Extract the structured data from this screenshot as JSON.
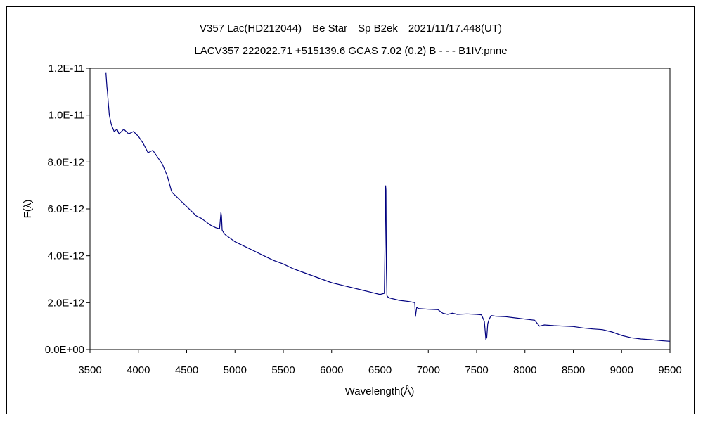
{
  "chart_data": {
    "type": "line",
    "title": "V357 Lac(HD212044)　Be Star　Sp B2ek　2021/11/17.448(UT)",
    "subtitle": "LACV357 222022.71 +515139.6 GCAS 7.02 (0.2) B - - - B1IV:pnne",
    "xlabel": "Wavelength(Å)",
    "ylabel": "F(λ)",
    "xlim": [
      3500,
      9500
    ],
    "ylim": [
      0,
      1.2e-11
    ],
    "grid": false,
    "line_color": "#00007f",
    "x_ticks": [
      3500,
      4000,
      4500,
      5000,
      5500,
      6000,
      6500,
      7000,
      7500,
      8000,
      8500,
      9000,
      9500
    ],
    "x_tick_labels": [
      "3500",
      "4000",
      "4500",
      "5000",
      "5500",
      "6000",
      "6500",
      "7000",
      "7500",
      "8000",
      "8500",
      "9000",
      "9500"
    ],
    "y_ticks": [
      0,
      2e-12,
      4e-12,
      6e-12,
      8e-12,
      1e-11,
      1.2e-11
    ],
    "y_tick_labels": [
      "0.0E+00",
      "2.0E-12",
      "4.0E-12",
      "6.0E-12",
      "8.0E-12",
      "1.0E-11",
      "1.2E-11"
    ],
    "series": [
      {
        "x": [
          3665,
          3670,
          3675,
          3680,
          3690,
          3700,
          3720,
          3750,
          3780,
          3800,
          3850,
          3900,
          3950,
          4000,
          4050,
          4100,
          4150,
          4200,
          4250,
          4300,
          4340,
          4350,
          4400,
          4450,
          4500,
          4550,
          4600,
          4650,
          4700,
          4750,
          4800,
          4840,
          4855,
          4861,
          4867,
          4880,
          4900,
          4950,
          5000,
          5100,
          5200,
          5300,
          5400,
          5500,
          5600,
          5700,
          5800,
          5900,
          6000,
          6100,
          6200,
          6300,
          6400,
          6500,
          6545,
          6552,
          6558,
          6562,
          6566,
          6572,
          6580,
          6600,
          6700,
          6800,
          6860,
          6867,
          6873,
          6880,
          6900,
          7000,
          7100,
          7150,
          7200,
          7250,
          7300,
          7400,
          7500,
          7550,
          7580,
          7595,
          7605,
          7615,
          7630,
          7650,
          7700,
          7800,
          7900,
          8000,
          8100,
          8150,
          8200,
          8300,
          8400,
          8500,
          8600,
          8700,
          8800,
          8900,
          9000,
          9100,
          9200,
          9300,
          9400,
          9500
        ],
        "y": [
          1.18e-11,
          1.15e-11,
          1.12e-11,
          1.1e-11,
          1.05e-11,
          1e-11,
          9.6e-12,
          9.3e-12,
          9.4e-12,
          9.2e-12,
          9.4e-12,
          9.2e-12,
          9.3e-12,
          9.1e-12,
          8.8e-12,
          8.4e-12,
          8.5e-12,
          8.2e-12,
          7.9e-12,
          7.4e-12,
          6.8e-12,
          6.7e-12,
          6.5e-12,
          6.3e-12,
          6.1e-12,
          5.9e-12,
          5.7e-12,
          5.6e-12,
          5.45e-12,
          5.3e-12,
          5.2e-12,
          5.15e-12,
          5.85e-12,
          5.7e-12,
          5.1e-12,
          5e-12,
          4.9e-12,
          4.75e-12,
          4.6e-12,
          4.4e-12,
          4.2e-12,
          4e-12,
          3.8e-12,
          3.65e-12,
          3.45e-12,
          3.3e-12,
          3.15e-12,
          3e-12,
          2.85e-12,
          2.75e-12,
          2.65e-12,
          2.55e-12,
          2.45e-12,
          2.35e-12,
          2.4e-12,
          4.5e-12,
          7e-12,
          6.8e-12,
          3.5e-12,
          2.3e-12,
          2.25e-12,
          2.2e-12,
          2.1e-12,
          2.05e-12,
          2e-12,
          1.4e-12,
          1.6e-12,
          1.8e-12,
          1.75e-12,
          1.72e-12,
          1.7e-12,
          1.55e-12,
          1.5e-12,
          1.55e-12,
          1.5e-12,
          1.52e-12,
          1.5e-12,
          1.48e-12,
          1.2e-12,
          4.5e-13,
          5e-13,
          1.1e-12,
          1.3e-12,
          1.45e-12,
          1.42e-12,
          1.4e-12,
          1.35e-12,
          1.3e-12,
          1.25e-12,
          1e-12,
          1.05e-12,
          1.02e-12,
          1e-12,
          9.8e-13,
          9.2e-13,
          8.8e-13,
          8.5e-13,
          7.5e-13,
          6e-13,
          5e-13,
          4.5e-13,
          4.2e-13,
          3.8e-13,
          3.5e-13
        ]
      }
    ]
  }
}
